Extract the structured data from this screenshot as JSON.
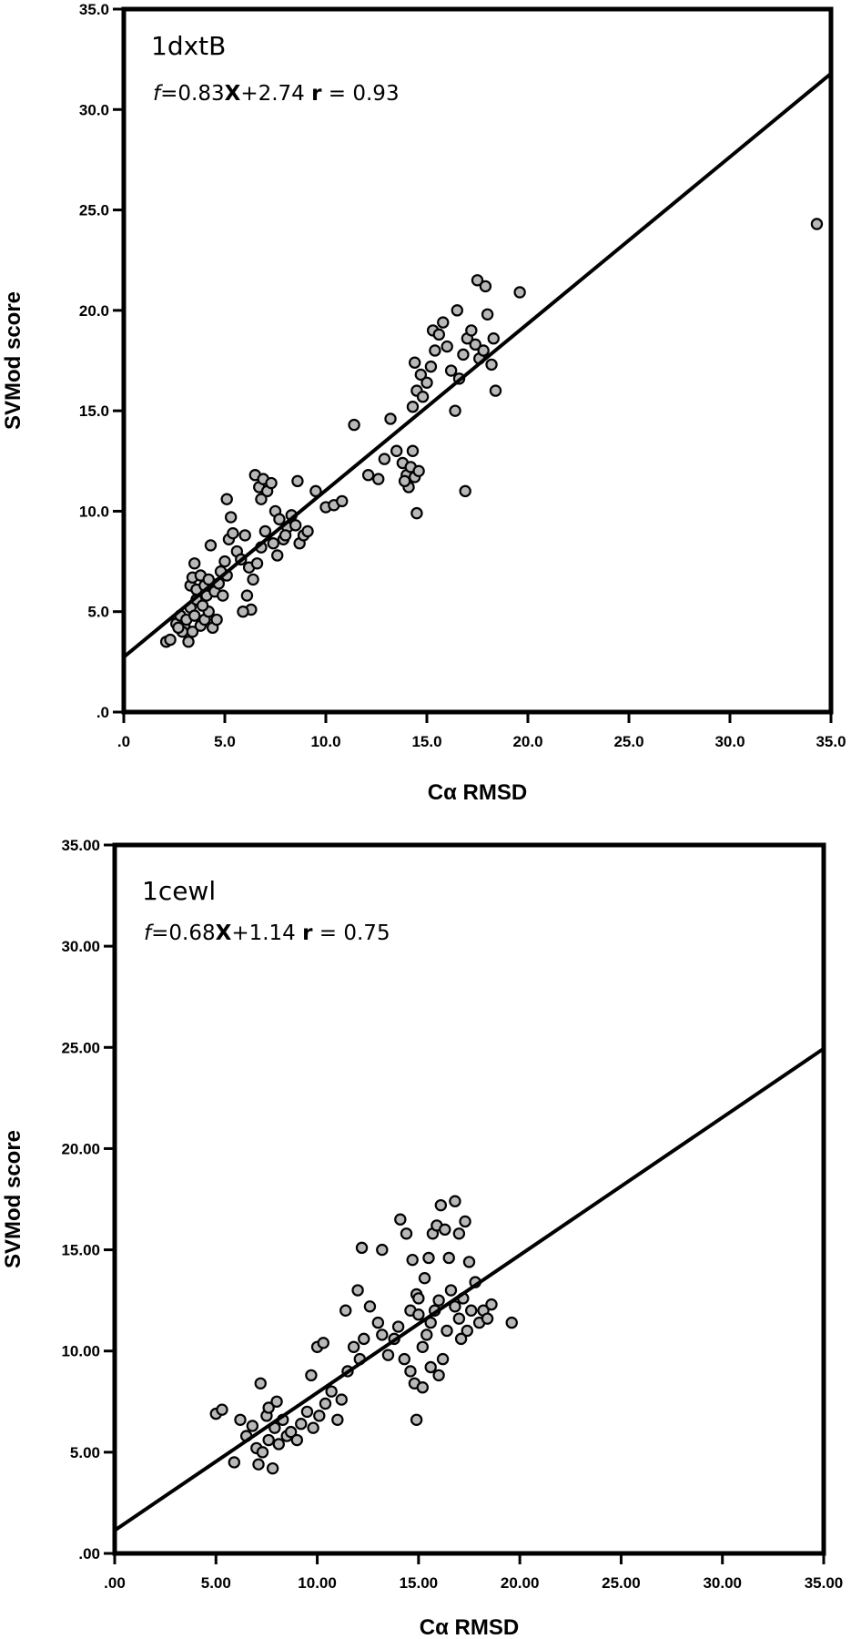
{
  "chart_data": [
    {
      "type": "scatter",
      "id": "1dxtB",
      "title": "1dxtB",
      "equation": {
        "fn": "f",
        "expr": "=0.83",
        "x": "X",
        "rest": "+2.74 ",
        "r": "r",
        "r_value": " = 0.93"
      },
      "xlabel": "Cα RMSD",
      "ylabel": "SVMod score",
      "xlim": [
        0,
        35
      ],
      "ylim": [
        0,
        35
      ],
      "xticks": [
        ".0",
        "5.0",
        "10.0",
        "15.0",
        "20.0",
        "25.0",
        "30.0",
        "35.0"
      ],
      "yticks": [
        ".0",
        "5.0",
        "10.0",
        "15.0",
        "20.0",
        "25.0",
        "30.0",
        "35.0"
      ],
      "fit": {
        "slope": 0.83,
        "intercept": 2.74
      },
      "points": [
        [
          2.1,
          3.5
        ],
        [
          2.3,
          3.6
        ],
        [
          2.6,
          4.4
        ],
        [
          2.8,
          4.8
        ],
        [
          3.0,
          4.3
        ],
        [
          3.2,
          3.5
        ],
        [
          3.4,
          4.0
        ],
        [
          2.9,
          4.0
        ],
        [
          3.1,
          4.6
        ],
        [
          2.7,
          4.2
        ],
        [
          3.3,
          5.2
        ],
        [
          3.5,
          4.8
        ],
        [
          3.8,
          4.3
        ],
        [
          4.0,
          4.6
        ],
        [
          4.2,
          5.0
        ],
        [
          4.4,
          4.2
        ],
        [
          4.6,
          4.6
        ],
        [
          3.6,
          5.6
        ],
        [
          3.9,
          5.3
        ],
        [
          4.1,
          5.8
        ],
        [
          3.3,
          6.3
        ],
        [
          3.4,
          6.7
        ],
        [
          3.6,
          6.1
        ],
        [
          3.8,
          6.8
        ],
        [
          4.0,
          6.3
        ],
        [
          4.2,
          6.6
        ],
        [
          3.5,
          7.4
        ],
        [
          4.3,
          8.3
        ],
        [
          4.5,
          6.0
        ],
        [
          4.7,
          6.4
        ],
        [
          4.9,
          5.8
        ],
        [
          5.1,
          6.8
        ],
        [
          4.8,
          7.0
        ],
        [
          5.0,
          7.5
        ],
        [
          5.2,
          8.6
        ],
        [
          5.4,
          8.9
        ],
        [
          5.3,
          9.7
        ],
        [
          5.1,
          10.6
        ],
        [
          5.6,
          8.0
        ],
        [
          5.8,
          7.6
        ],
        [
          6.0,
          8.8
        ],
        [
          6.2,
          7.2
        ],
        [
          6.3,
          5.1
        ],
        [
          5.9,
          5.0
        ],
        [
          6.1,
          5.8
        ],
        [
          6.4,
          6.6
        ],
        [
          6.6,
          7.4
        ],
        [
          6.8,
          8.2
        ],
        [
          7.0,
          9.0
        ],
        [
          6.5,
          11.8
        ],
        [
          6.7,
          11.2
        ],
        [
          6.9,
          11.6
        ],
        [
          7.1,
          11.0
        ],
        [
          7.3,
          11.4
        ],
        [
          6.8,
          10.6
        ],
        [
          7.5,
          10.0
        ],
        [
          7.7,
          9.6
        ],
        [
          7.4,
          8.4
        ],
        [
          7.6,
          7.8
        ],
        [
          7.9,
          8.6
        ],
        [
          8.1,
          9.2
        ],
        [
          8.3,
          9.8
        ],
        [
          8.5,
          9.3
        ],
        [
          8.0,
          8.8
        ],
        [
          8.7,
          8.4
        ],
        [
          8.9,
          8.8
        ],
        [
          9.1,
          9.0
        ],
        [
          8.6,
          11.5
        ],
        [
          9.5,
          11.0
        ],
        [
          10.0,
          10.2
        ],
        [
          10.4,
          10.3
        ],
        [
          10.8,
          10.5
        ],
        [
          11.4,
          14.3
        ],
        [
          12.1,
          11.8
        ],
        [
          12.6,
          11.6
        ],
        [
          12.9,
          12.6
        ],
        [
          13.2,
          14.6
        ],
        [
          13.5,
          13.0
        ],
        [
          13.8,
          12.4
        ],
        [
          14.0,
          11.8
        ],
        [
          14.1,
          11.2
        ],
        [
          14.2,
          12.2
        ],
        [
          14.3,
          13.0
        ],
        [
          13.9,
          11.5
        ],
        [
          14.4,
          11.7
        ],
        [
          14.6,
          12.0
        ],
        [
          14.5,
          9.9
        ],
        [
          14.3,
          15.2
        ],
        [
          14.5,
          16.0
        ],
        [
          14.7,
          16.8
        ],
        [
          14.4,
          17.4
        ],
        [
          14.8,
          15.7
        ],
        [
          15.0,
          16.4
        ],
        [
          15.2,
          17.2
        ],
        [
          15.4,
          18.0
        ],
        [
          15.3,
          19.0
        ],
        [
          15.6,
          18.8
        ],
        [
          15.8,
          19.4
        ],
        [
          16.0,
          18.2
        ],
        [
          16.2,
          17.0
        ],
        [
          16.4,
          15.0
        ],
        [
          16.6,
          16.6
        ],
        [
          16.8,
          17.8
        ],
        [
          17.0,
          18.6
        ],
        [
          16.5,
          20.0
        ],
        [
          16.9,
          11.0
        ],
        [
          17.2,
          19.0
        ],
        [
          17.4,
          18.3
        ],
        [
          17.6,
          17.6
        ],
        [
          17.8,
          18.0
        ],
        [
          18.0,
          19.8
        ],
        [
          18.2,
          17.3
        ],
        [
          18.4,
          16.0
        ],
        [
          17.5,
          21.5
        ],
        [
          17.9,
          21.2
        ],
        [
          18.3,
          18.6
        ],
        [
          19.6,
          20.9
        ],
        [
          34.3,
          24.3
        ]
      ]
    },
    {
      "type": "scatter",
      "id": "1cewl",
      "title": "1cewl",
      "equation": {
        "fn": "f",
        "expr": "=0.68",
        "x": "X",
        "rest": "+1.14 ",
        "r": "r",
        "r_value": " = 0.75"
      },
      "xlabel": "Cα RMSD",
      "ylabel": "SVMod score",
      "xlim": [
        0,
        35
      ],
      "ylim": [
        0,
        35
      ],
      "xticks": [
        ".00",
        "5.00",
        "10.00",
        "15.00",
        "20.00",
        "25.00",
        "30.00",
        "35.00"
      ],
      "yticks": [
        ".00",
        "5.00",
        "10.00",
        "15.00",
        "20.00",
        "25.00",
        "30.00",
        "35.00"
      ],
      "fit": {
        "slope": 0.68,
        "intercept": 1.14
      },
      "points": [
        [
          5.0,
          6.9
        ],
        [
          5.3,
          7.1
        ],
        [
          5.9,
          4.5
        ],
        [
          6.2,
          6.6
        ],
        [
          6.5,
          5.8
        ],
        [
          6.8,
          6.3
        ],
        [
          7.0,
          5.2
        ],
        [
          7.1,
          4.4
        ],
        [
          7.3,
          5.0
        ],
        [
          7.5,
          6.8
        ],
        [
          7.6,
          5.6
        ],
        [
          7.8,
          4.2
        ],
        [
          7.9,
          6.2
        ],
        [
          8.1,
          5.4
        ],
        [
          8.3,
          6.6
        ],
        [
          8.5,
          5.8
        ],
        [
          7.2,
          8.4
        ],
        [
          7.6,
          7.2
        ],
        [
          8.0,
          7.5
        ],
        [
          8.7,
          6.0
        ],
        [
          9.0,
          5.6
        ],
        [
          9.2,
          6.4
        ],
        [
          9.5,
          7.0
        ],
        [
          9.8,
          6.2
        ],
        [
          10.1,
          6.8
        ],
        [
          10.4,
          7.4
        ],
        [
          10.7,
          8.0
        ],
        [
          9.7,
          8.8
        ],
        [
          10.0,
          10.2
        ],
        [
          10.3,
          10.4
        ],
        [
          11.0,
          6.6
        ],
        [
          11.2,
          7.6
        ],
        [
          11.5,
          9.0
        ],
        [
          11.8,
          10.2
        ],
        [
          12.1,
          9.6
        ],
        [
          12.3,
          10.6
        ],
        [
          11.4,
          12.0
        ],
        [
          12.0,
          13.0
        ],
        [
          12.2,
          15.1
        ],
        [
          12.6,
          12.2
        ],
        [
          13.0,
          11.4
        ],
        [
          13.2,
          10.8
        ],
        [
          13.5,
          9.8
        ],
        [
          13.8,
          10.6
        ],
        [
          14.0,
          11.2
        ],
        [
          13.2,
          15.0
        ],
        [
          14.1,
          16.5
        ],
        [
          14.4,
          15.8
        ],
        [
          14.7,
          14.5
        ],
        [
          14.6,
          12.0
        ],
        [
          14.9,
          12.8
        ],
        [
          15.0,
          11.8
        ],
        [
          14.3,
          9.6
        ],
        [
          14.6,
          9.0
        ],
        [
          14.8,
          8.4
        ],
        [
          14.9,
          6.6
        ],
        [
          15.2,
          10.2
        ],
        [
          15.4,
          10.8
        ],
        [
          15.6,
          11.4
        ],
        [
          15.8,
          12.0
        ],
        [
          16.0,
          12.5
        ],
        [
          15.3,
          13.6
        ],
        [
          15.5,
          14.6
        ],
        [
          15.7,
          15.8
        ],
        [
          15.9,
          16.2
        ],
        [
          16.1,
          17.2
        ],
        [
          16.3,
          16.0
        ],
        [
          16.5,
          14.6
        ],
        [
          16.6,
          13.0
        ],
        [
          16.8,
          12.2
        ],
        [
          17.0,
          11.6
        ],
        [
          17.2,
          12.6
        ],
        [
          17.4,
          11.0
        ],
        [
          17.6,
          12.0
        ],
        [
          17.0,
          15.8
        ],
        [
          17.3,
          16.4
        ],
        [
          16.8,
          17.4
        ],
        [
          17.5,
          14.4
        ],
        [
          17.8,
          13.4
        ],
        [
          18.0,
          11.4
        ],
        [
          18.2,
          12.0
        ],
        [
          18.4,
          11.6
        ],
        [
          18.6,
          12.3
        ],
        [
          16.2,
          9.6
        ],
        [
          16.0,
          8.8
        ],
        [
          15.6,
          9.2
        ],
        [
          15.2,
          8.2
        ],
        [
          15.0,
          12.6
        ],
        [
          16.4,
          11.0
        ],
        [
          17.1,
          10.6
        ],
        [
          19.6,
          11.4
        ]
      ]
    }
  ]
}
